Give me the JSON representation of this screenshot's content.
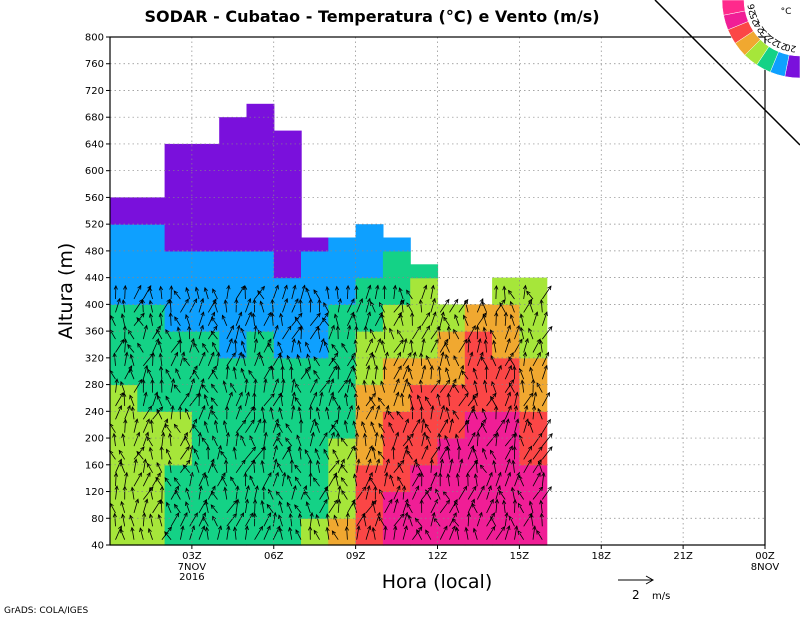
{
  "chart_data": {
    "type": "heatmap",
    "title": "SODAR - Cubatao - Temperatura (°C) e Vento (m/s)",
    "xlabel": "Hora (local)",
    "ylabel": "Altura (m)",
    "x_domain_hours": [
      0,
      24
    ],
    "ylim": [
      40,
      800
    ],
    "y_ticks": [
      40,
      80,
      120,
      160,
      200,
      240,
      280,
      320,
      360,
      400,
      440,
      480,
      520,
      560,
      600,
      640,
      680,
      720,
      760,
      800
    ],
    "x_ticks": [
      {
        "hour": 3,
        "label": "03Z",
        "sub": [
          "7NOV",
          "2016"
        ]
      },
      {
        "hour": 6,
        "label": "06Z",
        "sub": []
      },
      {
        "hour": 9,
        "label": "09Z",
        "sub": []
      },
      {
        "hour": 12,
        "label": "12Z",
        "sub": []
      },
      {
        "hour": 15,
        "label": "15Z",
        "sub": []
      },
      {
        "hour": 18,
        "label": "18Z",
        "sub": []
      },
      {
        "hour": 21,
        "label": "21Z",
        "sub": []
      },
      {
        "hour": 24,
        "label": "00Z",
        "sub": [
          "8NOV"
        ]
      }
    ],
    "grid": true,
    "colorbar": {
      "unit": "°C",
      "placement": "top-right",
      "levels": [
        20,
        21,
        22,
        23,
        24,
        25,
        26
      ],
      "colors": [
        "#7a10dc",
        "#0ea0ff",
        "#14d286",
        "#a6e63a",
        "#f0a830",
        "#fb4646",
        "#f01e96",
        "#ff2a8c"
      ]
    },
    "data_columns_hours": [
      0.5,
      1.5,
      2.5,
      3.5,
      4.5,
      5.5,
      6.5,
      7.5,
      8.5,
      9.5,
      10.5,
      11.5,
      12.5,
      13.5,
      14.5,
      15.5
    ],
    "data_top_m": [
      560,
      560,
      640,
      640,
      680,
      700,
      660,
      500,
      500,
      520,
      500,
      460,
      400,
      400,
      440,
      440
    ],
    "temperature_class_by_height": {
      "note_levels": "class index 0=<20,1=20-21,2=21-22,3=22-23,4=23-24,5=24-25,6=25-26",
      "heights_m": [
        40,
        80,
        120,
        160,
        200,
        240,
        280,
        320,
        360,
        400,
        440,
        480,
        520,
        560,
        600,
        640,
        680,
        700
      ],
      "columns": [
        [
          3,
          3,
          3,
          3,
          3,
          3,
          2,
          2,
          2,
          1,
          1,
          1,
          0,
          0,
          0,
          0,
          0,
          0
        ],
        [
          3,
          3,
          3,
          3,
          3,
          2,
          2,
          2,
          2,
          1,
          1,
          1,
          0,
          0,
          0,
          0,
          0,
          0
        ],
        [
          2,
          2,
          2,
          3,
          3,
          2,
          2,
          2,
          1,
          1,
          1,
          0,
          0,
          0,
          0,
          0,
          0,
          0
        ],
        [
          2,
          2,
          2,
          2,
          2,
          2,
          2,
          2,
          1,
          1,
          1,
          0,
          0,
          0,
          0,
          0,
          0,
          0
        ],
        [
          2,
          2,
          2,
          2,
          2,
          2,
          2,
          1,
          1,
          1,
          1,
          0,
          0,
          0,
          0,
          0,
          0,
          0
        ],
        [
          2,
          2,
          2,
          2,
          2,
          2,
          2,
          2,
          1,
          1,
          1,
          0,
          0,
          0,
          0,
          0,
          0,
          0
        ],
        [
          2,
          2,
          2,
          2,
          2,
          2,
          2,
          1,
          1,
          1,
          0,
          0,
          0,
          0,
          0,
          0,
          0,
          0
        ],
        [
          3,
          2,
          2,
          2,
          2,
          2,
          2,
          1,
          1,
          1,
          1,
          0,
          0,
          0,
          0,
          0,
          0,
          0
        ],
        [
          4,
          3,
          3,
          3,
          2,
          2,
          2,
          2,
          2,
          1,
          1,
          1,
          0,
          0,
          0,
          0,
          0,
          0
        ],
        [
          5,
          5,
          5,
          4,
          4,
          4,
          3,
          3,
          2,
          2,
          1,
          1,
          0,
          0,
          0,
          0,
          0,
          0
        ],
        [
          6,
          6,
          5,
          5,
          5,
          4,
          4,
          3,
          3,
          2,
          2,
          1,
          0,
          0,
          0,
          0,
          0,
          0
        ],
        [
          6,
          6,
          6,
          5,
          5,
          5,
          4,
          3,
          3,
          3,
          2,
          2,
          0,
          0,
          0,
          0,
          0,
          0
        ],
        [
          6,
          6,
          6,
          6,
          5,
          5,
          4,
          4,
          3,
          3,
          3,
          2,
          0,
          0,
          0,
          0,
          0,
          0
        ],
        [
          6,
          6,
          6,
          6,
          6,
          5,
          5,
          5,
          4,
          4,
          3,
          2,
          0,
          0,
          0,
          0,
          0,
          0
        ],
        [
          6,
          6,
          6,
          6,
          6,
          5,
          5,
          4,
          4,
          3,
          3,
          3,
          0,
          0,
          0,
          0,
          0,
          0
        ],
        [
          6,
          6,
          6,
          5,
          5,
          4,
          4,
          3,
          3,
          3,
          3,
          3,
          0,
          0,
          0,
          0,
          0,
          0
        ]
      ]
    },
    "wind_vector_reference": {
      "label": "2",
      "unit": "m/s"
    }
  },
  "credit": "GrADS: COLA/IGES"
}
